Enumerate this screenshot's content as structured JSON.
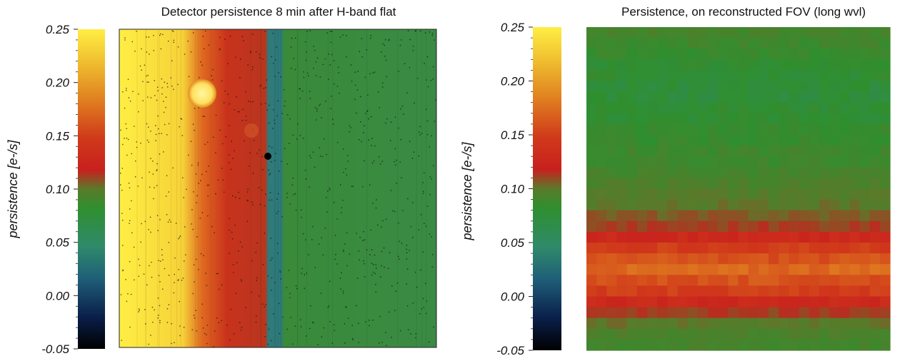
{
  "chart_data": [
    {
      "type": "heatmap",
      "title": "Detector persistence 8 min after H-band flat",
      "xlabel": "",
      "ylabel": "persistence [e-/s]",
      "colorbar": {
        "ticks": [
          "0.25",
          "0.20",
          "0.15",
          "0.10",
          "0.05",
          "0.00",
          "-0.05"
        ],
        "range": [
          -0.05,
          0.25
        ]
      },
      "description_values": {
        "left_region_level": 0.25,
        "middle_band_level": 0.12,
        "right_region_level": 0.08
      }
    },
    {
      "type": "heatmap",
      "title": "Persistence, on reconstructed FOV (long wvl)",
      "xlabel": "",
      "ylabel": "persistence [e-/s]",
      "colorbar": {
        "ticks": [
          "0.25",
          "0.20",
          "0.15",
          "0.10",
          "0.05",
          "0.00",
          "-0.05"
        ],
        "range": [
          -0.05,
          0.25
        ]
      },
      "row_levels": [
        0.085,
        0.08,
        0.075,
        0.07,
        0.07,
        0.065,
        0.065,
        0.07,
        0.07,
        0.075,
        0.075,
        0.08,
        0.08,
        0.085,
        0.09,
        0.095,
        0.1,
        0.11,
        0.12,
        0.14,
        0.16,
        0.17,
        0.18,
        0.17,
        0.16,
        0.14,
        0.12,
        0.1,
        0.09,
        0.085
      ]
    }
  ],
  "colors": {
    "scale": [
      "#000000",
      "#0a1f4a",
      "#1f5e78",
      "#2f8a6a",
      "#2f8f2f",
      "#5a7a2a",
      "#c8201e",
      "#d03a1a",
      "#e08020",
      "#f0c030",
      "#ffee44"
    ]
  }
}
